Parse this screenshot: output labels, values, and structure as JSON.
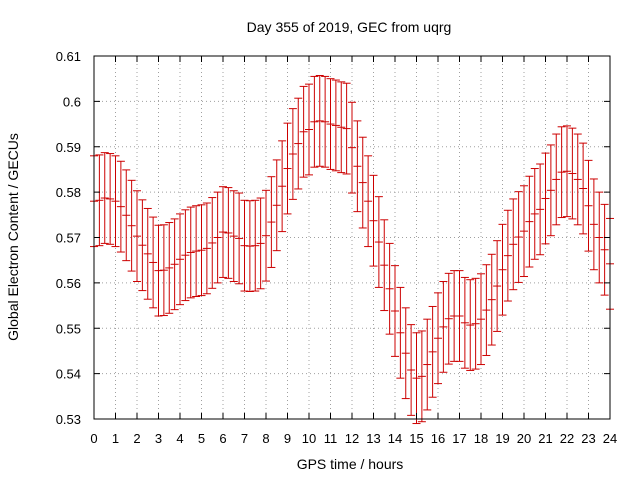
{
  "chart_data": {
    "type": "scatter",
    "title": "Day 355 of 2019, GEC from uqrg",
    "xlabel": "GPS time / hours",
    "ylabel": "Global Electron Content / GECUs",
    "xlim": [
      0,
      24
    ],
    "ylim": [
      0.53,
      0.61
    ],
    "xticks": [
      0,
      1,
      2,
      3,
      4,
      5,
      6,
      7,
      8,
      9,
      10,
      11,
      12,
      13,
      14,
      15,
      16,
      17,
      18,
      19,
      20,
      21,
      22,
      23,
      24
    ],
    "yticks": [
      0.53,
      0.54,
      0.55,
      0.56,
      0.57,
      0.58,
      0.59,
      0.6,
      0.61
    ],
    "xtick_labels": [
      "0",
      "1",
      "2",
      "3",
      "4",
      "5",
      "6",
      "7",
      "8",
      "9",
      "10",
      "11",
      "12",
      "13",
      "14",
      "15",
      "16",
      "17",
      "18",
      "19",
      "20",
      "21",
      "22",
      "23",
      "24"
    ],
    "ytick_labels": [
      "0.53",
      "0.54",
      "0.55",
      "0.56",
      "0.57",
      "0.58",
      "0.59",
      "0.6",
      "0.61"
    ],
    "grid": true,
    "error_bar_halfwidth": 0.01,
    "color": "#cc0000",
    "series": [
      {
        "x": [
          0,
          0.25,
          0.5,
          0.75,
          1,
          1.25,
          1.5,
          1.75,
          2,
          2.25,
          2.5,
          2.75,
          3,
          3.25,
          3.5,
          3.75,
          4,
          4.25,
          4.5,
          4.75,
          5,
          5.25,
          5.5,
          5.75,
          6,
          6.25,
          6.5,
          6.75,
          7,
          7.25,
          7.5,
          7.75,
          8,
          8.25,
          8.5,
          8.75,
          9,
          9.25,
          9.5,
          9.75,
          10,
          10.25,
          10.5,
          10.75,
          11,
          11.25,
          11.5,
          11.75,
          12,
          12.25,
          12.5,
          12.75,
          13,
          13.25,
          13.5,
          13.75,
          14,
          14.25,
          14.5,
          14.75,
          15,
          15.25,
          15.5,
          15.75,
          16,
          16.25,
          16.5,
          16.75,
          17,
          17.25,
          17.5,
          17.75,
          18,
          18.25,
          18.5,
          18.75,
          19,
          19.25,
          19.5,
          19.75,
          20,
          20.25,
          20.5,
          20.75,
          21,
          21.25,
          21.5,
          21.75,
          22,
          22.25,
          22.5,
          22.75,
          23,
          23.25,
          23.5,
          23.75,
          24
        ],
        "y": [
          0.578,
          0.5782,
          0.5787,
          0.5785,
          0.578,
          0.5768,
          0.5749,
          0.5726,
          0.5703,
          0.5683,
          0.5664,
          0.5645,
          0.5627,
          0.5628,
          0.5633,
          0.5641,
          0.5652,
          0.5661,
          0.5667,
          0.567,
          0.5672,
          0.5676,
          0.5688,
          0.57,
          0.5712,
          0.571,
          0.5703,
          0.5698,
          0.5682,
          0.5681,
          0.5682,
          0.5687,
          0.5704,
          0.5734,
          0.5771,
          0.5813,
          0.5852,
          0.5884,
          0.5907,
          0.5933,
          0.5938,
          0.5955,
          0.5957,
          0.5955,
          0.595,
          0.5947,
          0.5943,
          0.594,
          0.5898,
          0.5857,
          0.5821,
          0.578,
          0.5737,
          0.569,
          0.5639,
          0.5587,
          0.5538,
          0.549,
          0.5445,
          0.5408,
          0.539,
          0.5394,
          0.542,
          0.5448,
          0.5478,
          0.5503,
          0.5521,
          0.5527,
          0.5527,
          0.5512,
          0.5507,
          0.551,
          0.552,
          0.554,
          0.5563,
          0.5593,
          0.5629,
          0.566,
          0.5685,
          0.5701,
          0.5714,
          0.5735,
          0.5752,
          0.5762,
          0.5786,
          0.5804,
          0.5828,
          0.5844,
          0.5846,
          0.5841,
          0.5828,
          0.5808,
          0.577,
          0.5729,
          0.57,
          0.5673,
          0.5642
        ]
      }
    ]
  }
}
